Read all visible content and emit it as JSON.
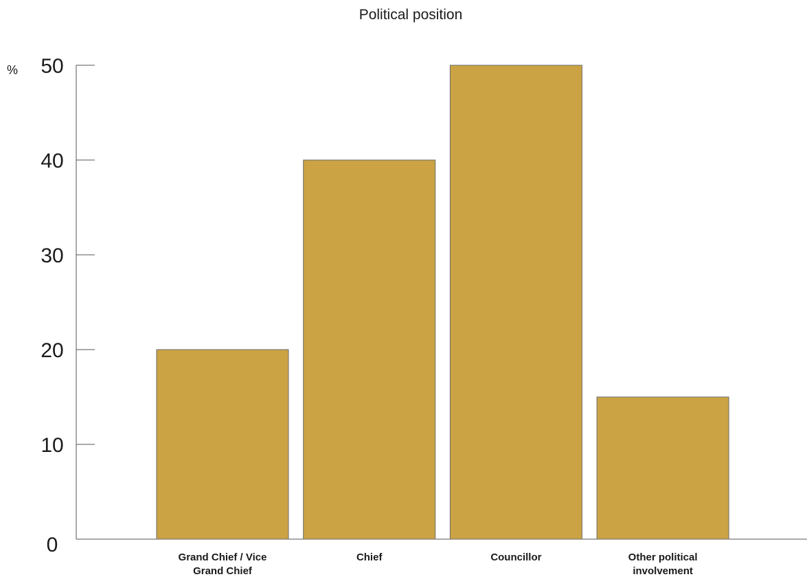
{
  "chart_data": {
    "type": "bar",
    "title": "Political position",
    "ylabel": "%",
    "xlabel": "",
    "categories": [
      [
        "Grand Chief / Vice",
        "Grand Chief"
      ],
      [
        "Chief"
      ],
      [
        "Councillor"
      ],
      [
        "Other political",
        "involvement"
      ]
    ],
    "values": [
      20,
      40,
      50,
      15
    ],
    "ylim": [
      0,
      50
    ],
    "yticks": [
      "0",
      "10",
      "20",
      "30",
      "40",
      "50"
    ],
    "bar_color": "#CBA344",
    "grid": false
  }
}
